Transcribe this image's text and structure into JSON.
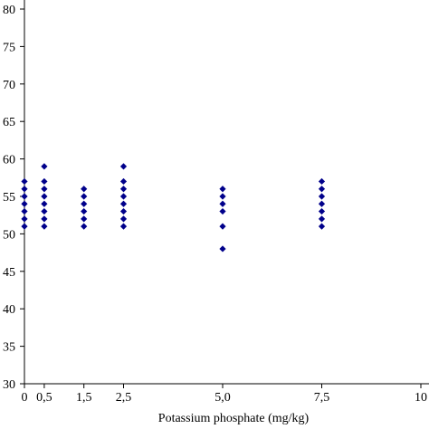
{
  "chart_data": {
    "type": "scatter",
    "title": "",
    "xlabel": "Potassium phosphate (mg/kg)",
    "ylabel": "",
    "xlim": [
      0,
      10
    ],
    "ylim": [
      30,
      80
    ],
    "grid": false,
    "legend": "none",
    "marker_color": "#00008B",
    "marker_shape": "diamond",
    "x_ticks": [
      {
        "value": 0,
        "label": "0"
      },
      {
        "value": 0.5,
        "label": "0,5"
      },
      {
        "value": 1.5,
        "label": "1,5"
      },
      {
        "value": 2.5,
        "label": "2,5"
      },
      {
        "value": 5.0,
        "label": "5,0"
      },
      {
        "value": 7.5,
        "label": "7,5"
      },
      {
        "value": 10,
        "label": "10"
      }
    ],
    "y_ticks": [
      {
        "value": 30,
        "label": "30"
      },
      {
        "value": 35,
        "label": "35"
      },
      {
        "value": 40,
        "label": "40"
      },
      {
        "value": 45,
        "label": "45"
      },
      {
        "value": 50,
        "label": "50"
      },
      {
        "value": 55,
        "label": "55"
      },
      {
        "value": 60,
        "label": "60"
      },
      {
        "value": 65,
        "label": "65"
      },
      {
        "value": 70,
        "label": "70"
      },
      {
        "value": 75,
        "label": "75"
      },
      {
        "value": 80,
        "label": "80"
      }
    ],
    "points": [
      {
        "x": 0,
        "y": 51
      },
      {
        "x": 0,
        "y": 52
      },
      {
        "x": 0,
        "y": 53
      },
      {
        "x": 0,
        "y": 54
      },
      {
        "x": 0,
        "y": 55
      },
      {
        "x": 0,
        "y": 56
      },
      {
        "x": 0,
        "y": 57
      },
      {
        "x": 0.5,
        "y": 51
      },
      {
        "x": 0.5,
        "y": 52
      },
      {
        "x": 0.5,
        "y": 53
      },
      {
        "x": 0.5,
        "y": 54
      },
      {
        "x": 0.5,
        "y": 55
      },
      {
        "x": 0.5,
        "y": 56
      },
      {
        "x": 0.5,
        "y": 57
      },
      {
        "x": 0.5,
        "y": 59
      },
      {
        "x": 1.5,
        "y": 51
      },
      {
        "x": 1.5,
        "y": 52
      },
      {
        "x": 1.5,
        "y": 53
      },
      {
        "x": 1.5,
        "y": 54
      },
      {
        "x": 1.5,
        "y": 55
      },
      {
        "x": 1.5,
        "y": 56
      },
      {
        "x": 2.5,
        "y": 51
      },
      {
        "x": 2.5,
        "y": 52
      },
      {
        "x": 2.5,
        "y": 53
      },
      {
        "x": 2.5,
        "y": 54
      },
      {
        "x": 2.5,
        "y": 55
      },
      {
        "x": 2.5,
        "y": 56
      },
      {
        "x": 2.5,
        "y": 57
      },
      {
        "x": 2.5,
        "y": 59
      },
      {
        "x": 5.0,
        "y": 48
      },
      {
        "x": 5.0,
        "y": 51
      },
      {
        "x": 5.0,
        "y": 53
      },
      {
        "x": 5.0,
        "y": 54
      },
      {
        "x": 5.0,
        "y": 55
      },
      {
        "x": 5.0,
        "y": 56
      },
      {
        "x": 7.5,
        "y": 51
      },
      {
        "x": 7.5,
        "y": 52
      },
      {
        "x": 7.5,
        "y": 53
      },
      {
        "x": 7.5,
        "y": 54
      },
      {
        "x": 7.5,
        "y": 55
      },
      {
        "x": 7.5,
        "y": 56
      },
      {
        "x": 7.5,
        "y": 57
      }
    ]
  }
}
